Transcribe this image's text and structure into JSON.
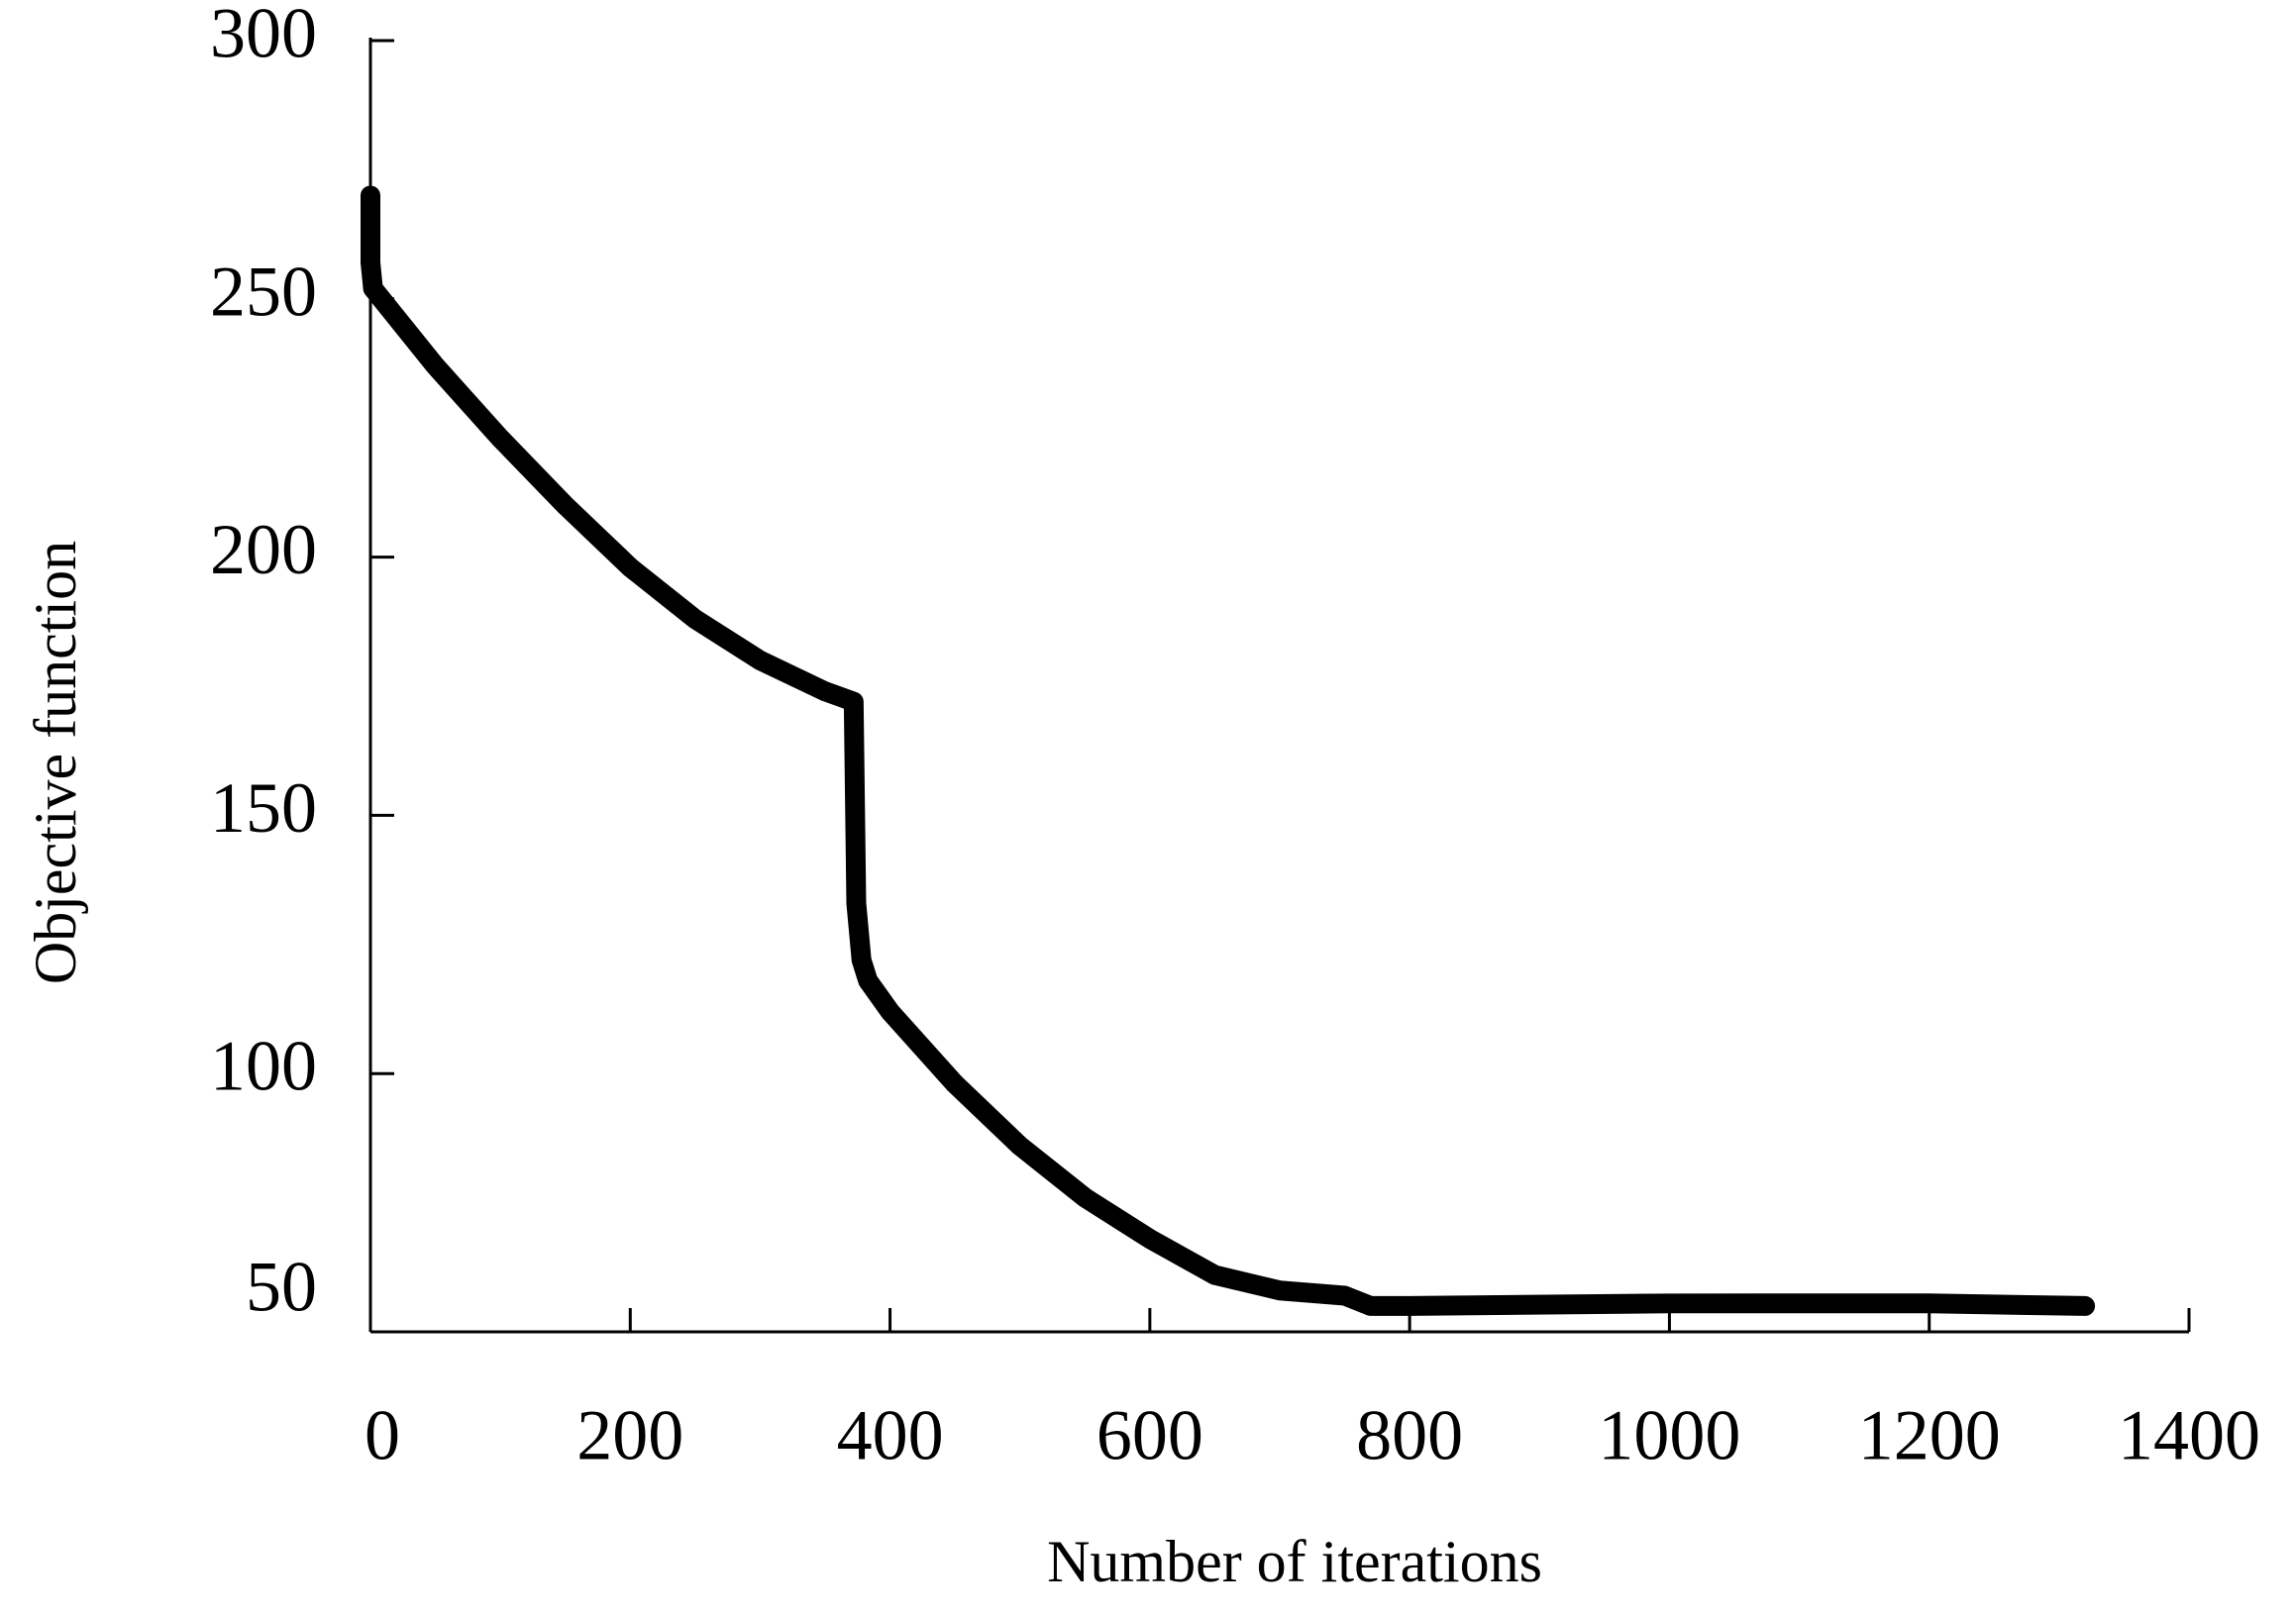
{
  "chart_data": {
    "type": "line",
    "x_label": "Number of iterations",
    "y_label": "Objective function",
    "xlim": [
      0,
      1400
    ],
    "xticks": [
      0,
      200,
      400,
      600,
      800,
      1000,
      1200,
      1400
    ],
    "ylim": [
      50,
      300
    ],
    "yticks": [
      50,
      100,
      150,
      200,
      250,
      300
    ],
    "x": [
      0,
      0,
      2,
      50,
      100,
      150,
      200,
      250,
      300,
      350,
      372,
      374,
      378,
      383,
      400,
      450,
      500,
      550,
      600,
      650,
      700,
      750,
      770,
      800,
      1000,
      1200,
      1320
    ],
    "series": [
      {
        "color": "#000000",
        "values": [
          270,
          257,
          252,
          237,
          223,
          210,
          198,
          188,
          180,
          174,
          172,
          133,
          122,
          118,
          112,
          98,
          86,
          76,
          68,
          61,
          58,
          57,
          55,
          55,
          55.5,
          55.5,
          55
        ]
      }
    ]
  }
}
